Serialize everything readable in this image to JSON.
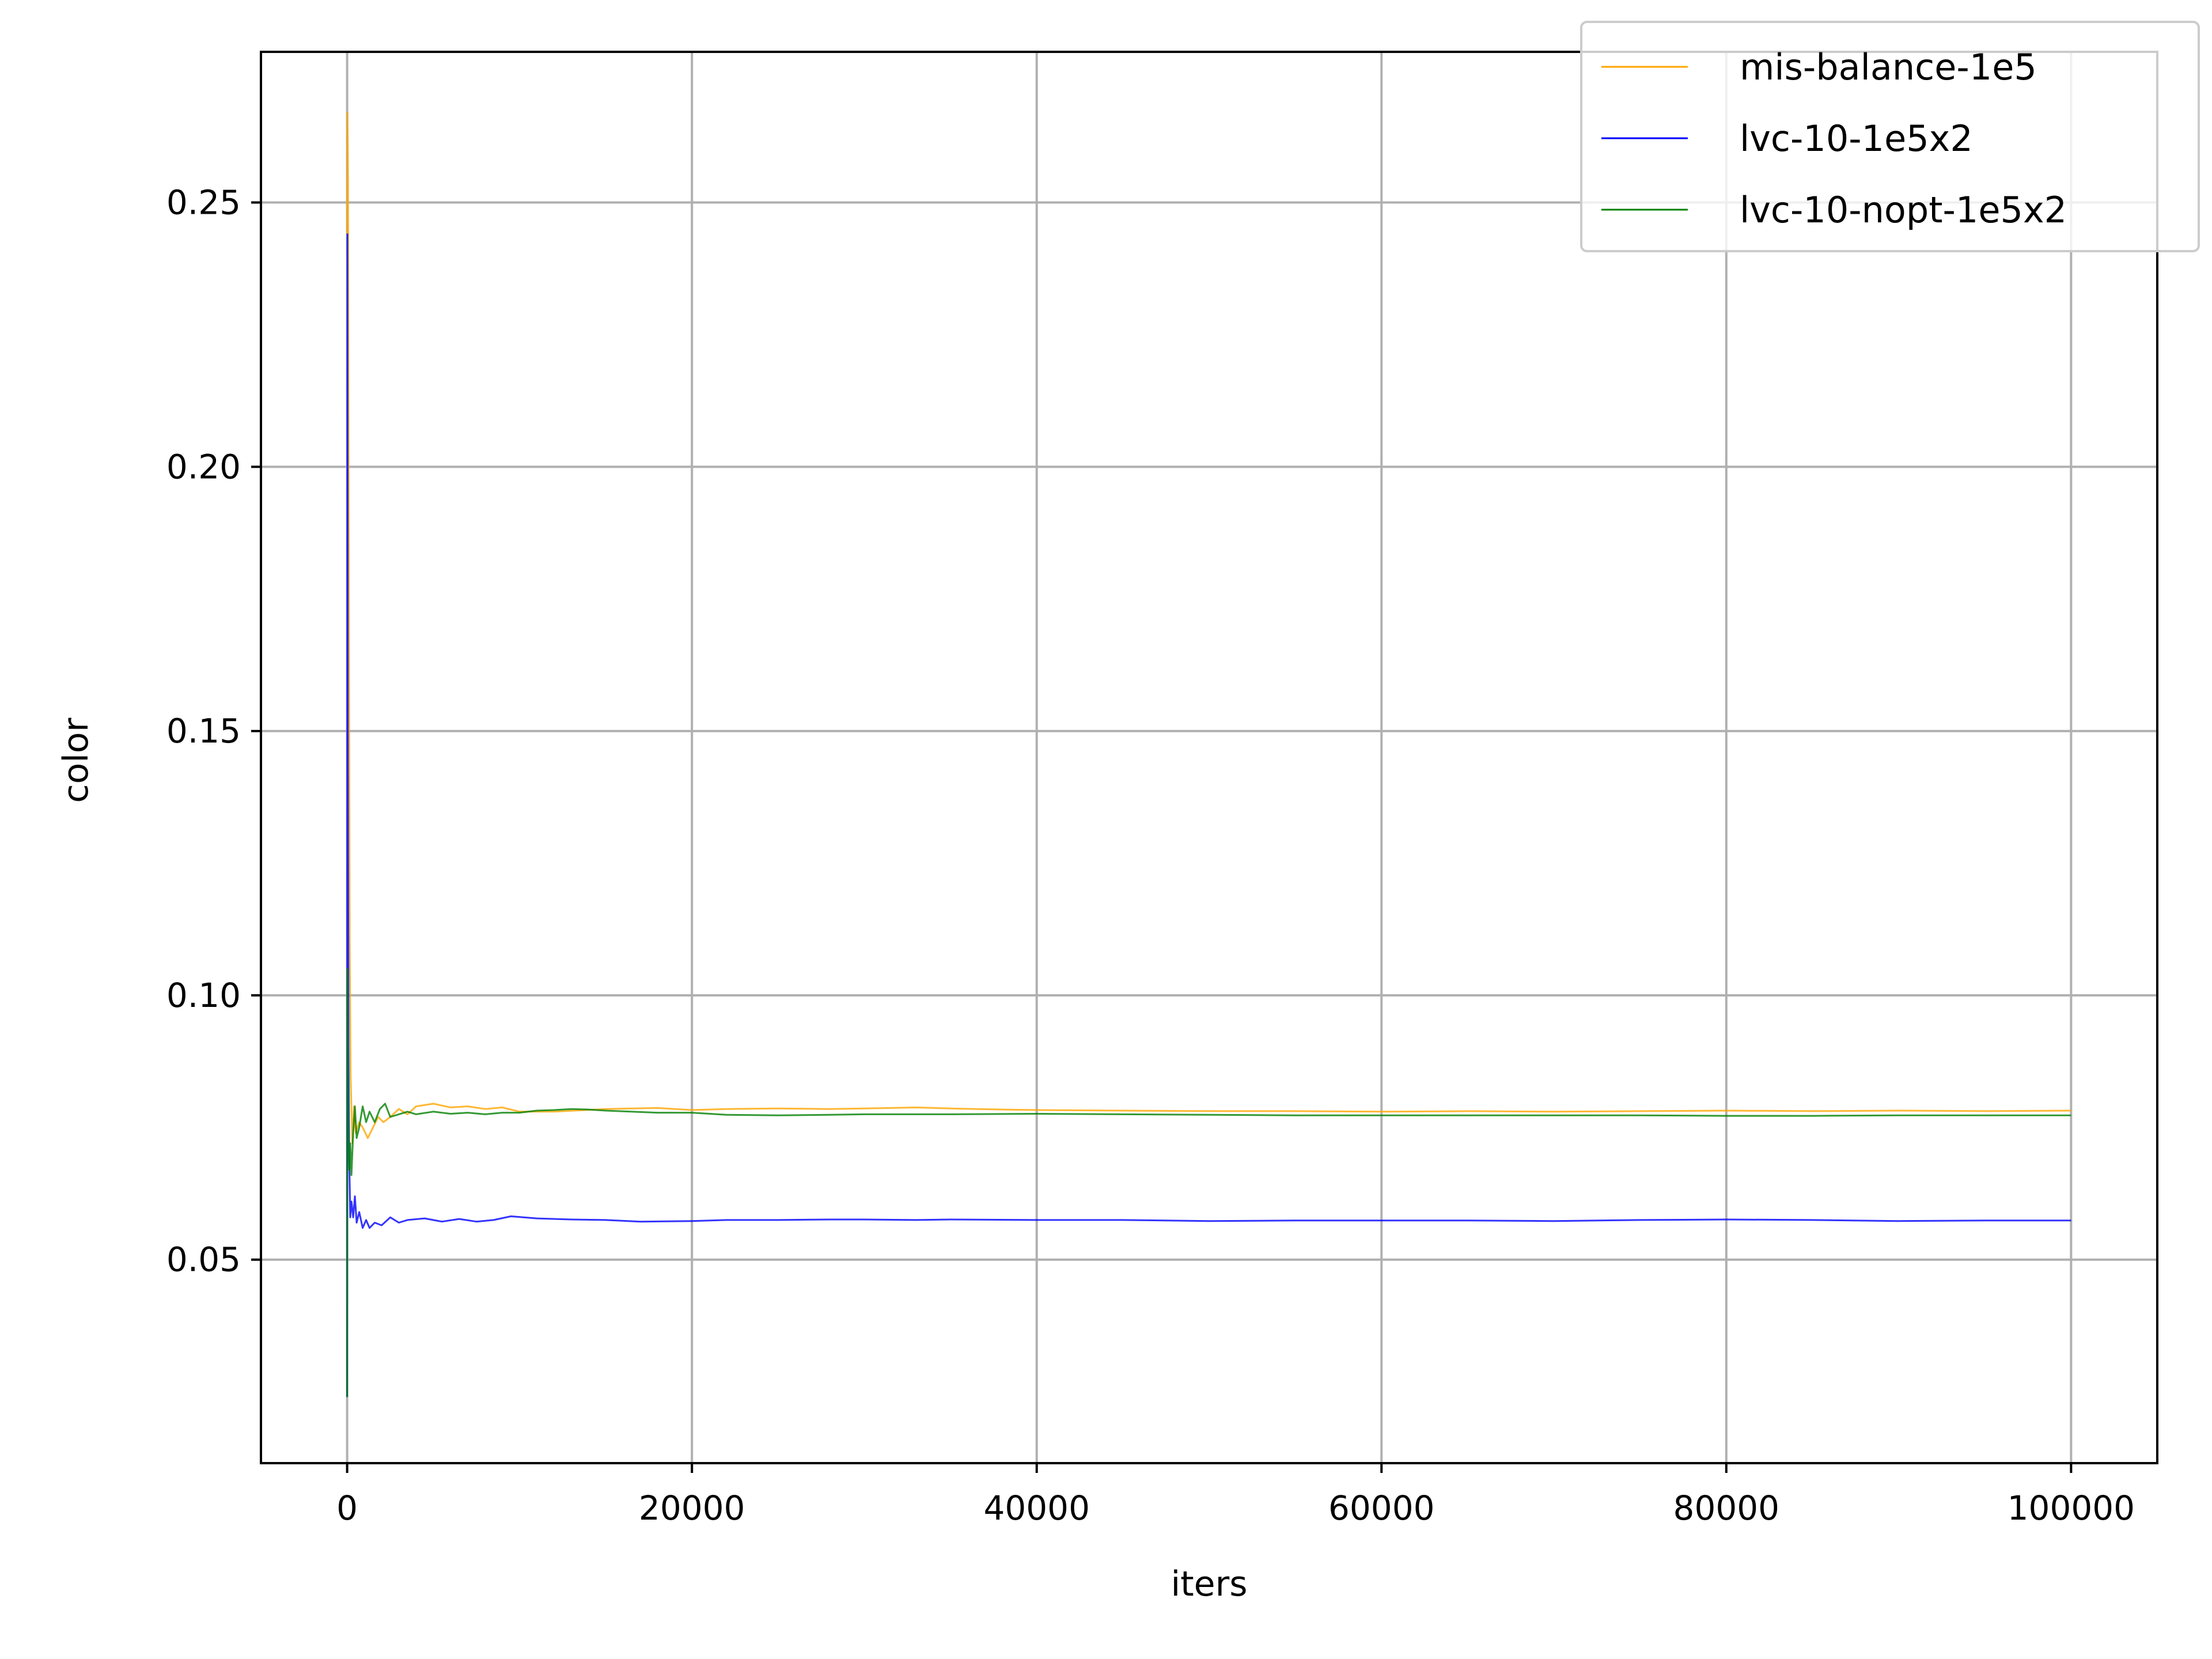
{
  "chart_data": {
    "type": "line",
    "title": "",
    "xlabel": "iters",
    "ylabel": "color",
    "xlim": [
      -5000,
      105000
    ],
    "ylim": [
      0.0115,
      0.2785
    ],
    "grid": true,
    "legend_position": "top-right",
    "x_ticks": [
      0,
      20000,
      40000,
      60000,
      80000,
      100000
    ],
    "x_tick_labels": [
      "0",
      "20000",
      "40000",
      "60000",
      "80000",
      "100000"
    ],
    "y_ticks": [
      0.05,
      0.1,
      0.15,
      0.2,
      0.25
    ],
    "y_tick_labels": [
      "0.05",
      "0.10",
      "0.15",
      "0.20",
      "0.25"
    ],
    "series": [
      {
        "name": "mis-balance-1e5",
        "color": "#FFA500",
        "points": [
          [
            0,
            0.244
          ],
          [
            20,
            0.267
          ],
          [
            50,
            0.255
          ],
          [
            100,
            0.18
          ],
          [
            150,
            0.11
          ],
          [
            200,
            0.085
          ],
          [
            300,
            0.072
          ],
          [
            400,
            0.079
          ],
          [
            500,
            0.074
          ],
          [
            700,
            0.076
          ],
          [
            900,
            0.075
          ],
          [
            1200,
            0.073
          ],
          [
            1500,
            0.075
          ],
          [
            1800,
            0.077
          ],
          [
            2100,
            0.076
          ],
          [
            2500,
            0.077
          ],
          [
            3000,
            0.0785
          ],
          [
            3500,
            0.0775
          ],
          [
            4000,
            0.079
          ],
          [
            5000,
            0.0795
          ],
          [
            6000,
            0.0788
          ],
          [
            7000,
            0.079
          ],
          [
            8000,
            0.0785
          ],
          [
            9000,
            0.0788
          ],
          [
            10000,
            0.078
          ],
          [
            12000,
            0.078
          ],
          [
            15000,
            0.0785
          ],
          [
            18000,
            0.0787
          ],
          [
            20000,
            0.0783
          ],
          [
            22000,
            0.0785
          ],
          [
            25000,
            0.0786
          ],
          [
            28000,
            0.0785
          ],
          [
            30000,
            0.0786
          ],
          [
            33000,
            0.0788
          ],
          [
            35000,
            0.0786
          ],
          [
            38000,
            0.0784
          ],
          [
            40000,
            0.0783
          ],
          [
            45000,
            0.0782
          ],
          [
            50000,
            0.0781
          ],
          [
            55000,
            0.0781
          ],
          [
            60000,
            0.078
          ],
          [
            65000,
            0.0781
          ],
          [
            70000,
            0.078
          ],
          [
            75000,
            0.0781
          ],
          [
            80000,
            0.0782
          ],
          [
            85000,
            0.0781
          ],
          [
            90000,
            0.0782
          ],
          [
            95000,
            0.0781
          ],
          [
            100000,
            0.0782
          ]
        ]
      },
      {
        "name": "lvc-10-1e5x2",
        "color": "#0000FF",
        "points": [
          [
            0,
            0.024
          ],
          [
            15,
            0.244
          ],
          [
            40,
            0.15
          ],
          [
            80,
            0.09
          ],
          [
            120,
            0.07
          ],
          [
            180,
            0.058
          ],
          [
            250,
            0.061
          ],
          [
            350,
            0.058
          ],
          [
            450,
            0.062
          ],
          [
            550,
            0.057
          ],
          [
            700,
            0.059
          ],
          [
            900,
            0.056
          ],
          [
            1100,
            0.0575
          ],
          [
            1300,
            0.056
          ],
          [
            1600,
            0.057
          ],
          [
            2000,
            0.0565
          ],
          [
            2500,
            0.058
          ],
          [
            3000,
            0.057
          ],
          [
            3500,
            0.0575
          ],
          [
            4500,
            0.0578
          ],
          [
            5500,
            0.0572
          ],
          [
            6500,
            0.0577
          ],
          [
            7500,
            0.0572
          ],
          [
            8500,
            0.0575
          ],
          [
            9500,
            0.0582
          ],
          [
            11000,
            0.0578
          ],
          [
            13000,
            0.0576
          ],
          [
            15000,
            0.0575
          ],
          [
            17000,
            0.0572
          ],
          [
            20000,
            0.0573
          ],
          [
            22000,
            0.0575
          ],
          [
            25000,
            0.0575
          ],
          [
            28000,
            0.0576
          ],
          [
            30000,
            0.0576
          ],
          [
            33000,
            0.0575
          ],
          [
            35000,
            0.0576
          ],
          [
            40000,
            0.0575
          ],
          [
            45000,
            0.0575
          ],
          [
            50000,
            0.0573
          ],
          [
            55000,
            0.0574
          ],
          [
            60000,
            0.0574
          ],
          [
            65000,
            0.0574
          ],
          [
            70000,
            0.0573
          ],
          [
            75000,
            0.0575
          ],
          [
            80000,
            0.0576
          ],
          [
            85000,
            0.0575
          ],
          [
            90000,
            0.0573
          ],
          [
            95000,
            0.0574
          ],
          [
            100000,
            0.0574
          ]
        ]
      },
      {
        "name": "lvc-10-nopt-1e5x2",
        "color": "#008000",
        "points": [
          [
            0,
            0.024
          ],
          [
            15,
            0.105
          ],
          [
            40,
            0.09
          ],
          [
            80,
            0.075
          ],
          [
            120,
            0.067
          ],
          [
            180,
            0.072
          ],
          [
            250,
            0.066
          ],
          [
            350,
            0.074
          ],
          [
            450,
            0.079
          ],
          [
            550,
            0.073
          ],
          [
            700,
            0.075
          ],
          [
            900,
            0.079
          ],
          [
            1100,
            0.076
          ],
          [
            1300,
            0.078
          ],
          [
            1600,
            0.076
          ],
          [
            1900,
            0.0785
          ],
          [
            2200,
            0.0795
          ],
          [
            2500,
            0.077
          ],
          [
            3000,
            0.0775
          ],
          [
            3500,
            0.078
          ],
          [
            4000,
            0.0775
          ],
          [
            5000,
            0.078
          ],
          [
            6000,
            0.0776
          ],
          [
            7000,
            0.0778
          ],
          [
            8000,
            0.0775
          ],
          [
            9000,
            0.0778
          ],
          [
            10000,
            0.0778
          ],
          [
            11000,
            0.0782
          ],
          [
            12000,
            0.0783
          ],
          [
            13000,
            0.0785
          ],
          [
            14000,
            0.0784
          ],
          [
            15000,
            0.0782
          ],
          [
            18000,
            0.0778
          ],
          [
            20000,
            0.0778
          ],
          [
            22000,
            0.0774
          ],
          [
            25000,
            0.0773
          ],
          [
            28000,
            0.0774
          ],
          [
            30000,
            0.0775
          ],
          [
            35000,
            0.0775
          ],
          [
            40000,
            0.0776
          ],
          [
            45000,
            0.0775
          ],
          [
            50000,
            0.0774
          ],
          [
            55000,
            0.0773
          ],
          [
            60000,
            0.0773
          ],
          [
            65000,
            0.0773
          ],
          [
            70000,
            0.0773
          ],
          [
            75000,
            0.0773
          ],
          [
            80000,
            0.0772
          ],
          [
            85000,
            0.0772
          ],
          [
            90000,
            0.0773
          ],
          [
            95000,
            0.0773
          ],
          [
            100000,
            0.0773
          ]
        ]
      }
    ]
  }
}
